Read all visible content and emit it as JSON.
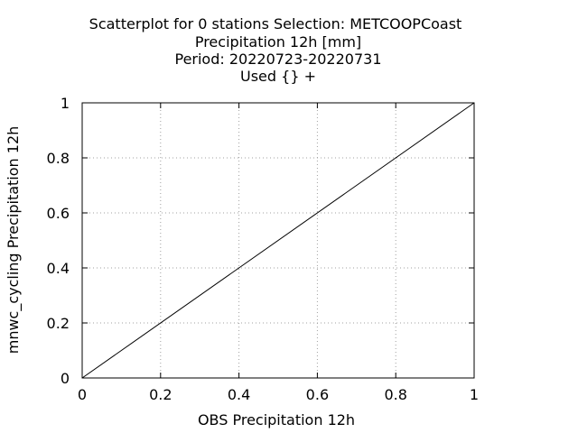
{
  "chart_data": {
    "type": "scatter",
    "title_lines": [
      "Scatterplot for    0 stations Selection: METCOOPCoast",
      "Precipitation 12h [mm]",
      "Period: 20220723-20220731",
      "Used {} +"
    ],
    "xlabel": "OBS Precipitation 12h",
    "ylabel": "mnwc_cycling Precipitation 12h",
    "xlim": [
      0,
      1
    ],
    "ylim": [
      0,
      1
    ],
    "x_ticks": [
      "0",
      "0.2",
      "0.4",
      "0.6",
      "0.8",
      "1"
    ],
    "y_ticks": [
      "0",
      "0.2",
      "0.4",
      "0.6",
      "0.8",
      "1"
    ],
    "grid": true,
    "series": [],
    "reference_line": {
      "x": [
        0,
        1
      ],
      "y": [
        0,
        1
      ]
    }
  },
  "colors": {
    "grid": "#a0a0a0",
    "axes": "#000000",
    "line": "#000000"
  }
}
